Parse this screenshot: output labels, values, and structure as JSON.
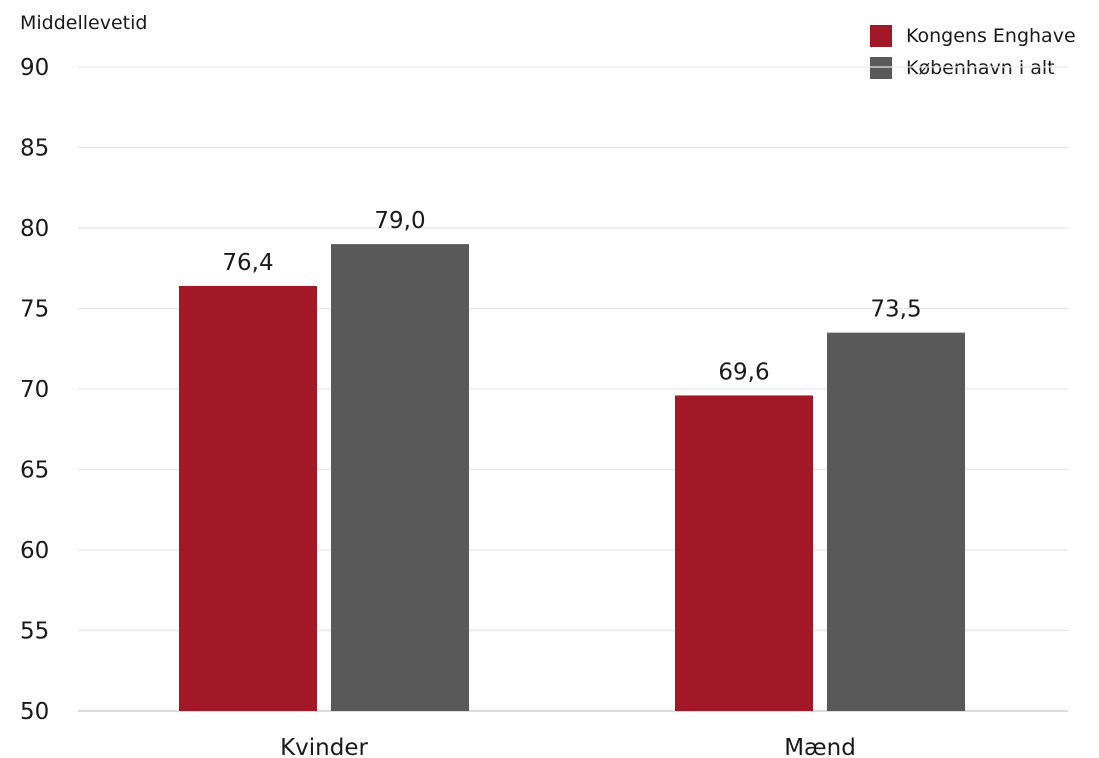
{
  "chart_data": {
    "type": "bar",
    "title": "",
    "xlabel": "",
    "ylabel": "Middellevetid",
    "categories": [
      "Kvinder",
      "Mænd"
    ],
    "series": [
      {
        "name": "Kongens Enghave",
        "values": [
          76.4,
          69.6
        ],
        "labels": [
          "76,4",
          "69,6"
        ],
        "color": "#a31827"
      },
      {
        "name": "København i alt",
        "values": [
          79.0,
          73.5
        ],
        "labels": [
          "79,0",
          "73,5"
        ],
        "color": "#595959"
      }
    ],
    "ylim": [
      50,
      90
    ],
    "yticks": [
      "50",
      "55",
      "60",
      "65",
      "70",
      "75",
      "80",
      "85",
      "90"
    ],
    "grid": true,
    "legend_position": "top-right"
  }
}
